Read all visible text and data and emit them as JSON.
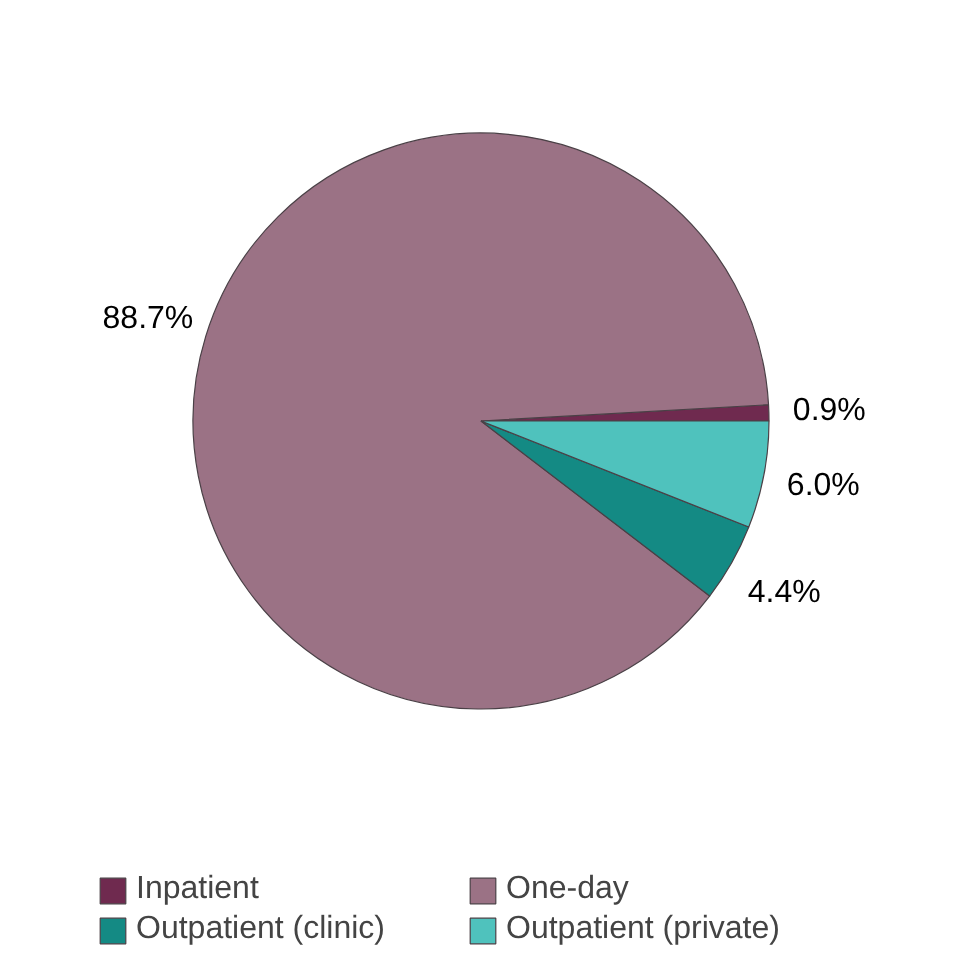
{
  "chart_data": {
    "type": "pie",
    "categories": [
      "Inpatient",
      "One-day",
      "Outpatient (clinic)",
      "Outpatient (private)"
    ],
    "values": [
      0.9,
      88.7,
      4.4,
      6.0
    ],
    "colors": [
      "#6f2a4f",
      "#9b7285",
      "#148a84",
      "#4fc2bd"
    ],
    "value_labels": [
      "0.9%",
      "88.7%",
      "4.4%",
      "6.0%"
    ],
    "legend": "bottom"
  }
}
